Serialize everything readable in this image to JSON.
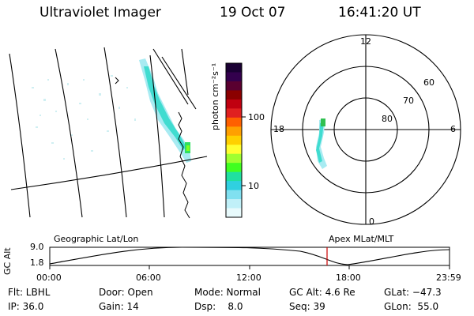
{
  "header": {
    "instrument": "Ultraviolet Imager",
    "date": "19 Oct 07",
    "time": "16:41:20 UT"
  },
  "geographic_view": {
    "title": "Geographic Lat/Lon"
  },
  "colorbar": {
    "unit_label": "photon cm⁻²s⁻¹",
    "ticks": [
      "100",
      "10"
    ],
    "colors": [
      "#1a0033",
      "#33004d",
      "#5a0030",
      "#8b0000",
      "#c00010",
      "#e02020",
      "#ff6000",
      "#ffa000",
      "#ffd000",
      "#ffff30",
      "#a0ff30",
      "#40ff20",
      "#20e0a0",
      "#30d0e0",
      "#80e0f0",
      "#c0f0f8",
      "#e8fafc"
    ]
  },
  "polar_view": {
    "title": "Apex MLat/MLT",
    "mlt_labels": {
      "top": "12",
      "left": "18",
      "right": "6",
      "bottom": "0"
    },
    "mlat_labels": [
      "60",
      "70",
      "80"
    ]
  },
  "timeline": {
    "ylabel": "GC Alt",
    "y_ticks": [
      "9.0",
      "1.8"
    ],
    "x_ticks": [
      "00:00",
      "06:00",
      "12:00",
      "18:00",
      "23:59"
    ],
    "marker_color": "#cc0000"
  },
  "status": {
    "flt": "Flt: LBHL",
    "ip": "IP: 36.0",
    "door": "Door: Open",
    "gain": "Gain: 14",
    "mode": "Mode: Normal",
    "dsp": "Dsp:    8.0",
    "gc_alt": "GC Alt: 4.6 Re",
    "seq": "Seq: 39",
    "glat": "GLat: −47.3",
    "glon": "GLon:  55.0"
  }
}
